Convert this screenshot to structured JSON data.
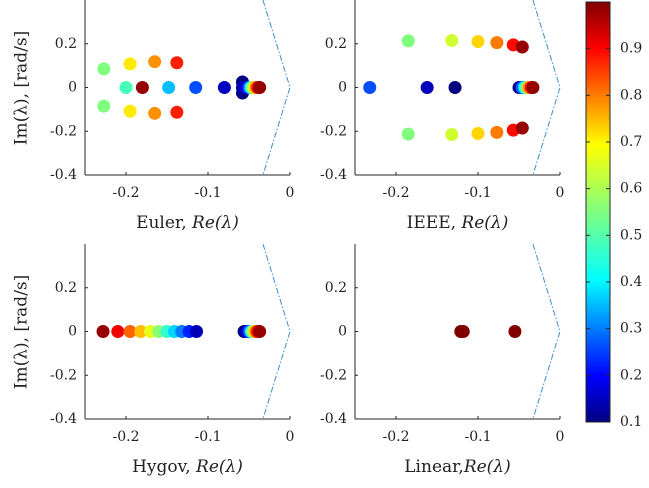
{
  "figure": {
    "ylabel": "Im(λ), [rad/s]",
    "colorbar": {
      "min": 0.1,
      "max": 1.0,
      "ticks": [
        "0.1",
        "0.2",
        "0.3",
        "0.4",
        "0.5",
        "0.6",
        "0.7",
        "0.8",
        "0.9"
      ],
      "colormap": "jet"
    }
  },
  "chart_data": [
    {
      "type": "scatter",
      "panel": "Euler",
      "xlabel_text": "Euler, ",
      "xlabel_math": "Re(λ)",
      "xlim": [
        -0.25,
        0.0
      ],
      "ylim": [
        -0.4,
        0.4
      ],
      "xticks": [
        "-0.2",
        "-0.1",
        "0"
      ],
      "yticks": [
        "0.2",
        "0",
        "-0.2",
        "-0.4"
      ],
      "points": [
        {
          "x": -0.227,
          "y": 0.085,
          "c": 0.55
        },
        {
          "x": -0.227,
          "y": -0.085,
          "c": 0.55
        },
        {
          "x": -0.2,
          "y": 0.0,
          "c": 0.5
        },
        {
          "x": -0.195,
          "y": 0.108,
          "c": 0.68
        },
        {
          "x": -0.195,
          "y": -0.108,
          "c": 0.68
        },
        {
          "x": -0.18,
          "y": 0.0,
          "c": 0.98
        },
        {
          "x": -0.165,
          "y": 0.118,
          "c": 0.76
        },
        {
          "x": -0.165,
          "y": -0.118,
          "c": 0.76
        },
        {
          "x": -0.148,
          "y": 0.0,
          "c": 0.38
        },
        {
          "x": -0.138,
          "y": 0.113,
          "c": 0.86
        },
        {
          "x": -0.138,
          "y": -0.113,
          "c": 0.86
        },
        {
          "x": -0.115,
          "y": 0.0,
          "c": 0.28
        },
        {
          "x": -0.08,
          "y": 0.0,
          "c": 0.16
        },
        {
          "x": -0.058,
          "y": 0.025,
          "c": 0.1
        },
        {
          "x": -0.058,
          "y": -0.025,
          "c": 0.1
        },
        {
          "x": -0.058,
          "y": 0.0,
          "c": 0.14
        },
        {
          "x": -0.052,
          "y": 0.0,
          "c": 0.22
        },
        {
          "x": -0.049,
          "y": 0.0,
          "c": 0.35
        },
        {
          "x": -0.047,
          "y": 0.0,
          "c": 0.48
        },
        {
          "x": -0.045,
          "y": 0.0,
          "c": 0.58
        },
        {
          "x": -0.043,
          "y": 0.0,
          "c": 0.68
        },
        {
          "x": -0.041,
          "y": 0.0,
          "c": 0.78
        },
        {
          "x": -0.039,
          "y": 0.0,
          "c": 0.88
        },
        {
          "x": -0.037,
          "y": 0.0,
          "c": 0.98
        }
      ]
    },
    {
      "type": "scatter",
      "panel": "IEEE",
      "xlabel_text": "IEEE, ",
      "xlabel_math": "Re(λ)",
      "xlim": [
        -0.25,
        0.0
      ],
      "ylim": [
        -0.4,
        0.4
      ],
      "xticks": [
        "-0.2",
        "-0.1",
        "0"
      ],
      "yticks": [
        "0.2",
        "0",
        "-0.2",
        "-0.4"
      ],
      "points": [
        {
          "x": -0.232,
          "y": 0.0,
          "c": 0.28
        },
        {
          "x": -0.185,
          "y": 0.213,
          "c": 0.55
        },
        {
          "x": -0.185,
          "y": -0.213,
          "c": 0.55
        },
        {
          "x": -0.162,
          "y": 0.0,
          "c": 0.15
        },
        {
          "x": -0.132,
          "y": 0.215,
          "c": 0.62
        },
        {
          "x": -0.132,
          "y": -0.215,
          "c": 0.62
        },
        {
          "x": -0.128,
          "y": 0.0,
          "c": 0.1
        },
        {
          "x": -0.1,
          "y": 0.21,
          "c": 0.7
        },
        {
          "x": -0.1,
          "y": -0.21,
          "c": 0.7
        },
        {
          "x": -0.077,
          "y": 0.205,
          "c": 0.78
        },
        {
          "x": -0.077,
          "y": -0.205,
          "c": 0.78
        },
        {
          "x": -0.057,
          "y": 0.195,
          "c": 0.88
        },
        {
          "x": -0.057,
          "y": -0.195,
          "c": 0.88
        },
        {
          "x": -0.046,
          "y": 0.185,
          "c": 0.98
        },
        {
          "x": -0.046,
          "y": -0.185,
          "c": 0.98
        },
        {
          "x": -0.05,
          "y": 0.0,
          "c": 0.12
        },
        {
          "x": -0.046,
          "y": 0.0,
          "c": 0.3
        },
        {
          "x": -0.043,
          "y": 0.0,
          "c": 0.45
        },
        {
          "x": -0.04,
          "y": 0.0,
          "c": 0.6
        },
        {
          "x": -0.038,
          "y": 0.0,
          "c": 0.75
        },
        {
          "x": -0.035,
          "y": 0.0,
          "c": 0.88
        },
        {
          "x": -0.033,
          "y": 0.0,
          "c": 0.98
        }
      ]
    },
    {
      "type": "scatter",
      "panel": "Hygov",
      "xlabel_text": "Hygov, ",
      "xlabel_math": "Re(λ)",
      "xlim": [
        -0.25,
        0.0
      ],
      "ylim": [
        -0.4,
        0.4
      ],
      "xticks": [
        "-0.2",
        "-0.1",
        "0"
      ],
      "yticks": [
        "0.2",
        "0",
        "-0.2",
        "-0.4"
      ],
      "points": [
        {
          "x": -0.228,
          "y": 0.0,
          "c": 0.98
        },
        {
          "x": -0.21,
          "y": 0.0,
          "c": 0.9
        },
        {
          "x": -0.195,
          "y": 0.0,
          "c": 0.8
        },
        {
          "x": -0.182,
          "y": 0.0,
          "c": 0.72
        },
        {
          "x": -0.17,
          "y": 0.0,
          "c": 0.64
        },
        {
          "x": -0.16,
          "y": 0.0,
          "c": 0.56
        },
        {
          "x": -0.15,
          "y": 0.0,
          "c": 0.48
        },
        {
          "x": -0.141,
          "y": 0.0,
          "c": 0.4
        },
        {
          "x": -0.132,
          "y": 0.0,
          "c": 0.32
        },
        {
          "x": -0.123,
          "y": 0.0,
          "c": 0.24
        },
        {
          "x": -0.114,
          "y": 0.0,
          "c": 0.15
        },
        {
          "x": -0.056,
          "y": 0.0,
          "c": 0.1
        },
        {
          "x": -0.052,
          "y": 0.0,
          "c": 0.2
        },
        {
          "x": -0.049,
          "y": 0.0,
          "c": 0.32
        },
        {
          "x": -0.047,
          "y": 0.0,
          "c": 0.45
        },
        {
          "x": -0.045,
          "y": 0.0,
          "c": 0.58
        },
        {
          "x": -0.043,
          "y": 0.0,
          "c": 0.7
        },
        {
          "x": -0.041,
          "y": 0.0,
          "c": 0.8
        },
        {
          "x": -0.039,
          "y": 0.0,
          "c": 0.9
        },
        {
          "x": -0.037,
          "y": 0.0,
          "c": 0.98
        }
      ]
    },
    {
      "type": "scatter",
      "panel": "Linear",
      "xlabel_text": "Linear,",
      "xlabel_math": "Re(λ)",
      "xlim": [
        -0.25,
        0.0
      ],
      "ylim": [
        -0.4,
        0.4
      ],
      "xticks": [
        "-0.2",
        "-0.1",
        "0"
      ],
      "yticks": [
        "0.2",
        "0",
        "-0.2",
        "-0.4"
      ],
      "points": [
        {
          "x": -0.121,
          "y": 0.0,
          "c": 1.0
        },
        {
          "x": -0.118,
          "y": 0.0,
          "c": 1.0
        },
        {
          "x": -0.055,
          "y": 0.0,
          "c": 1.0
        }
      ]
    }
  ]
}
